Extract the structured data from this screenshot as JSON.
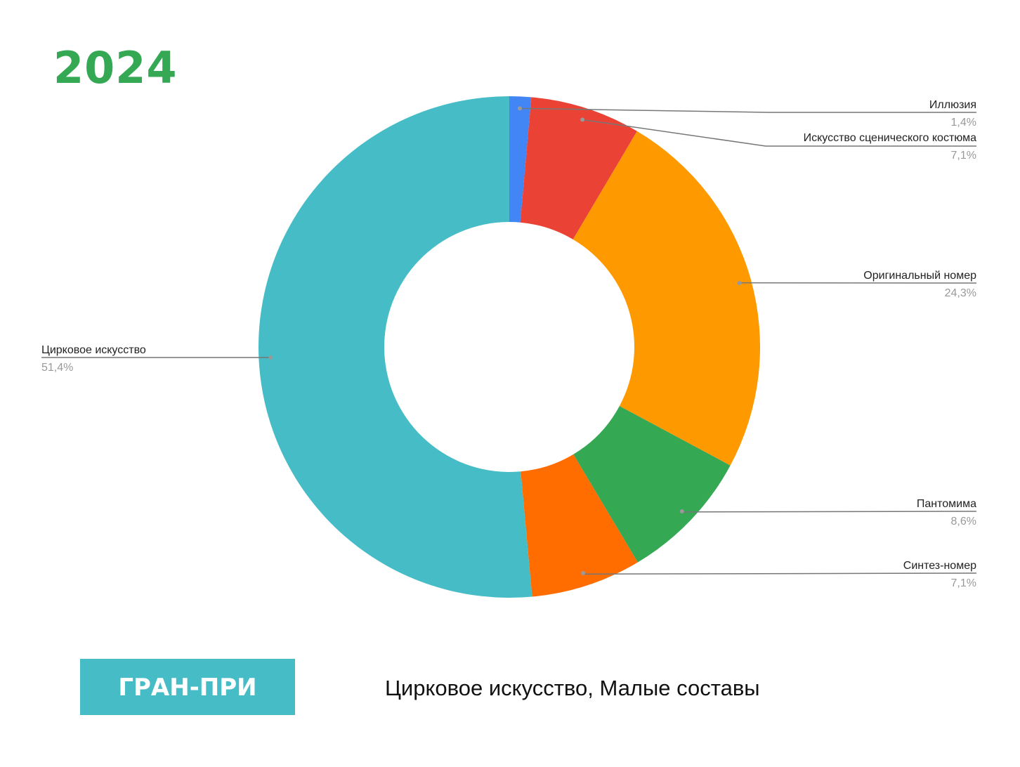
{
  "chart_data": {
    "type": "donut",
    "year": "2024",
    "badge": "ГРАН-ПРИ",
    "title": "Цирковое искусство, Малые составы",
    "categories": [
      "Иллюзия",
      "Искусство сценического костюма",
      "Оригинальный номер",
      "Пантомима",
      "Синтез-номер",
      "Цирковое искусство"
    ],
    "values": [
      1.4,
      7.1,
      24.3,
      8.6,
      7.1,
      51.4
    ],
    "value_labels": [
      "1,4%",
      "7,1%",
      "24,3%",
      "8,6%",
      "7,1%",
      "51,4%"
    ],
    "colors": [
      "#4285f4",
      "#ea4335",
      "#ff9900",
      "#34a853",
      "#ff6d01",
      "#46bdc6"
    ]
  }
}
